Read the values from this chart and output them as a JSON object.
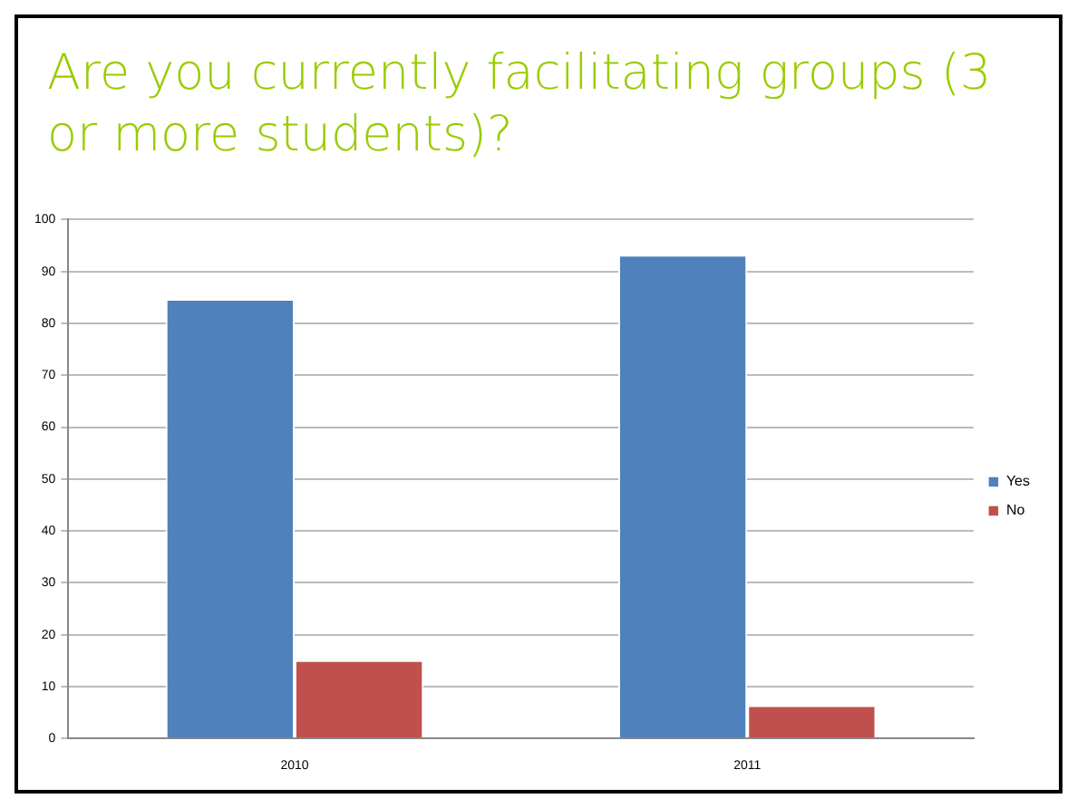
{
  "chart_data": {
    "type": "bar",
    "title": "Are you currently facilitating groups (3 or more students)?",
    "categories": [
      "2010",
      "2011"
    ],
    "series": [
      {
        "name": "Yes",
        "color": "#4f81bd",
        "values": [
          84.7,
          93.2
        ]
      },
      {
        "name": "No",
        "color": "#c0504d",
        "values": [
          15.1,
          6.4
        ]
      }
    ],
    "ylim": [
      0,
      100
    ],
    "yticks": [
      0,
      10,
      20,
      30,
      40,
      50,
      60,
      70,
      80,
      90,
      100
    ],
    "grid": "y",
    "legend": "right"
  }
}
